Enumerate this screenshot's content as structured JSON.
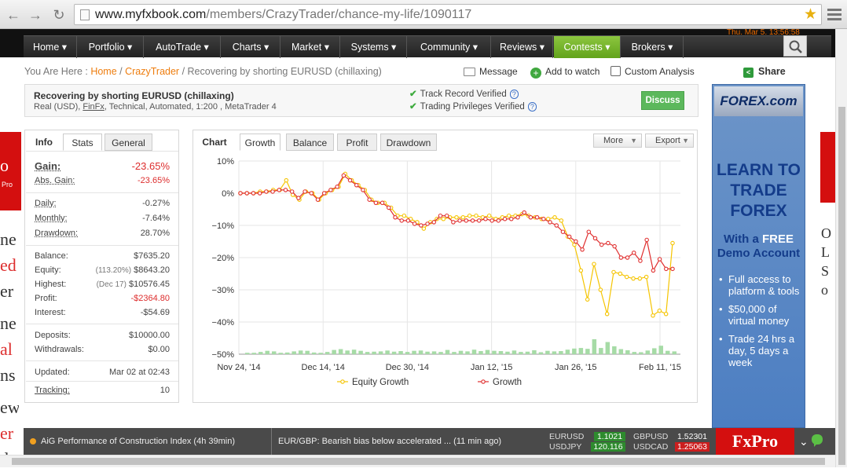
{
  "browser": {
    "url_host": "www.myfxbook.com",
    "url_path": "/members/CrazyTrader/chance-my-life/1090117"
  },
  "clock_text": "Thu, Mar 5, 13:56:58",
  "nav": [
    "Home ▾",
    "Portfolio ▾",
    "AutoTrade ▾",
    "Charts ▾",
    "Market ▾",
    "Systems ▾",
    "Community ▾",
    "Reviews ▾",
    "Contests ▾",
    "Brokers ▾"
  ],
  "crumb": {
    "prefix": "You Are Here : ",
    "home": "Home",
    "sep": " / ",
    "user": "CrazyTrader",
    "current": "Recovering by shorting EURUSD (chillaxing)"
  },
  "actions": {
    "message": "Message",
    "watch": "Add to watch",
    "analysis": "Custom Analysis",
    "share": "Share"
  },
  "system": {
    "name": "Recovering by shorting EURUSD (chillaxing)",
    "meta_prefix": "Real (USD), ",
    "broker": "FinFx",
    "meta_suffix": ", Technical, Automated, 1:200 , MetaTrader 4",
    "track": "Track Record Verified",
    "privileges": "Trading Privileges Verified",
    "discuss": "Discuss"
  },
  "info": {
    "tabs": [
      "Info",
      "Stats",
      "General"
    ],
    "gain_label": "Gain:",
    "gain": "-23.65%",
    "abs_label": "Abs. Gain:",
    "abs": "-23.65%",
    "daily_label": "Daily:",
    "daily": "-0.27%",
    "monthly_label": "Monthly:",
    "monthly": "-7.64%",
    "drawdown_label": "Drawdown:",
    "drawdown": "28.70%",
    "balance_label": "Balance:",
    "balance": "$7635.20",
    "equity_label": "Equity:",
    "equity_pct": "(113.20%)",
    "equity": "$8643.20",
    "highest_label": "Highest:",
    "highest_date": "(Dec 17)",
    "highest": "$10576.45",
    "profit_label": "Profit:",
    "profit": "-$2364.80",
    "interest_label": "Interest:",
    "interest": "-$54.69",
    "deposits_label": "Deposits:",
    "deposits": "$10000.00",
    "withdrawals_label": "Withdrawals:",
    "withdrawals": "$0.00",
    "updated_label": "Updated:",
    "updated": "Mar 02 at 02:43",
    "tracking_label": "Tracking:",
    "tracking": "10"
  },
  "chart_panel": {
    "tabs": [
      "Chart",
      "Growth",
      "Balance",
      "Profit",
      "Drawdown"
    ],
    "more": "More",
    "export": "Export"
  },
  "chart_data": {
    "type": "line",
    "ylim": [
      -50,
      10
    ],
    "yticks": [
      "10%",
      "0%",
      "−10%",
      "−20%",
      "−30%",
      "−40%",
      "−50%"
    ],
    "xticks": [
      "Nov 24, '14",
      "Dec 14, '14",
      "Dec 30, '14",
      "Jan 12, '15",
      "Jan 26, '15",
      "Feb 11, '15"
    ],
    "grid": true,
    "legend_placement": "bottom",
    "series": [
      {
        "name": "Equity Growth",
        "color": "#f5c400",
        "values": [
          0,
          0,
          0,
          0.5,
          0.5,
          1,
          1,
          4,
          -0.5,
          -2,
          0.5,
          0,
          -2,
          0,
          1,
          2,
          6,
          4,
          2.5,
          1,
          -2,
          -3,
          -3,
          -4.5,
          -7,
          -7,
          -8,
          -9,
          -11,
          -9,
          -8,
          -8,
          -7.5,
          -7.5,
          -7.5,
          -7,
          -7,
          -7.5,
          -7,
          -8,
          -7.5,
          -7,
          -7,
          -6.5,
          -7,
          -7.5,
          -8,
          -8,
          -7.5,
          -8.5,
          -13.5,
          -16,
          -24,
          -33,
          -22,
          -30,
          -37.5,
          -24.5,
          -25,
          -26,
          -26.5,
          -26.5,
          -26,
          -38,
          -36.5,
          -37.5,
          -15.5
        ]
      },
      {
        "name": "Growth",
        "color": "#e03030",
        "values": [
          0,
          0,
          0,
          0,
          0.5,
          0.5,
          1,
          1,
          0.5,
          -1.5,
          0.5,
          0,
          -2,
          0,
          1,
          2,
          5.5,
          4,
          2.5,
          1,
          -2,
          -3,
          -3,
          -4.5,
          -7.5,
          -8.5,
          -8.5,
          -9.5,
          -10,
          -9.5,
          -9,
          -7,
          -7,
          -9,
          -8.5,
          -8.5,
          -8.5,
          -8.5,
          -8,
          -8.5,
          -8.5,
          -8,
          -8,
          -7.5,
          -6,
          -7.5,
          -7.5,
          -8,
          -9,
          -10,
          -12,
          -13.5,
          -15,
          -17.5,
          -12,
          -14,
          -16,
          -15.5,
          -16.5,
          -20,
          -20,
          -18.5,
          -21,
          -14.5,
          -24,
          -20.5,
          -23.5,
          -23.5
        ]
      },
      {
        "name": "bars",
        "color": "#a6dba6",
        "values": [
          0.5,
          0.5,
          0.8,
          1.2,
          1,
          0.5,
          0.6,
          1,
          1.3,
          1.2,
          0.6,
          0.5,
          0.8,
          1.5,
          1.8,
          1.3,
          1.6,
          1.2,
          0.8,
          0.9,
          1,
          1.3,
          0.9,
          1.1,
          0.8,
          1.2,
          1.3,
          0.9,
          1,
          0.8,
          1.5,
          0.8,
          1.2,
          1,
          1.6,
          1.1,
          1.5,
          1.2,
          1.1,
          0.9,
          1.3,
          0.8,
          0.9,
          1.4,
          0.7,
          1.2,
          1,
          1.1,
          1.6,
          2,
          2.2,
          1.9,
          5.3,
          2.2,
          4.3,
          2.8,
          1.8,
          1.4,
          0.8,
          0.7,
          1.3,
          2.1,
          3,
          1.2,
          1
        ]
      }
    ]
  },
  "right_ad": {
    "brand": "FOREX.com",
    "learn": "LEARN TO TRADE FOREX",
    "free_prefix": "With a ",
    "free": "FREE",
    "free_suffix": " Demo Account",
    "bullets": [
      "Full access to platform & tools",
      "$50,000 of virtual money",
      "Trade 24 hrs a day, 5 days a week"
    ]
  },
  "left_edge_text": [
    "ne",
    "ed",
    "er",
    "ne",
    "al",
    "ns",
    "ew",
    "er",
    "ds"
  ],
  "right_edge_text": [
    "O",
    "L",
    "S",
    "o"
  ],
  "ticker": {
    "news1": "AiG Performance of Construction Index (4h 39min)",
    "news2": "EUR/GBP: Bearish bias below accelerated ...  (11 min ago)",
    "quotes": [
      {
        "pair": "EURUSD",
        "value": "1.1021",
        "color": "#2e8b2e"
      },
      {
        "pair": "USDJPY",
        "value": "120.116",
        "color": "#2e8b2e"
      },
      {
        "pair": "GBPUSD",
        "value": "1.52301",
        "color": "#4a4a4a"
      },
      {
        "pair": "USDCAD",
        "value": "1.25063",
        "color": "#cc1e1e"
      }
    ],
    "brand": "FxPro"
  }
}
